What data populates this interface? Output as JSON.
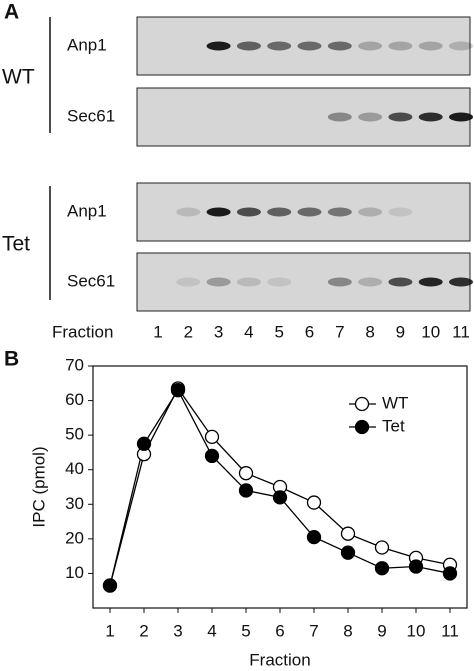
{
  "panel_a": {
    "label": "A",
    "groups": [
      {
        "name": "WT",
        "blots": [
          "Anp1",
          "Sec61"
        ]
      },
      {
        "name": "Tet",
        "blots": [
          "Anp1",
          "Sec61"
        ]
      }
    ],
    "fraction_label": "Fraction",
    "fractions": [
      "1",
      "2",
      "3",
      "4",
      "5",
      "6",
      "7",
      "8",
      "9",
      "10",
      "11"
    ]
  },
  "chart_data": {
    "panel_label": "B",
    "type": "line",
    "x": [
      1,
      2,
      3,
      4,
      5,
      6,
      7,
      8,
      9,
      10,
      11
    ],
    "series": [
      {
        "name": "WT",
        "color": "#000000",
        "marker_fill": "#ffffff",
        "values": [
          6.5,
          44.5,
          63.5,
          49.5,
          39,
          35,
          30.5,
          21.5,
          17.5,
          14.5,
          12.5
        ]
      },
      {
        "name": "Tet",
        "color": "#000000",
        "marker_fill": "#000000",
        "values": [
          6.5,
          47.5,
          63,
          44,
          34,
          32,
          20.5,
          16,
          11.5,
          12,
          10
        ]
      }
    ],
    "xlabel": "Fraction",
    "ylabel": "IPC (pmol)",
    "xlim": [
      0.5,
      11.5
    ],
    "ylim": [
      0,
      70
    ],
    "xticks": [
      1,
      2,
      3,
      4,
      5,
      6,
      7,
      8,
      9,
      10,
      11
    ],
    "yticks": [
      10,
      20,
      30,
      40,
      50,
      60,
      70
    ],
    "legend": "upper right"
  }
}
